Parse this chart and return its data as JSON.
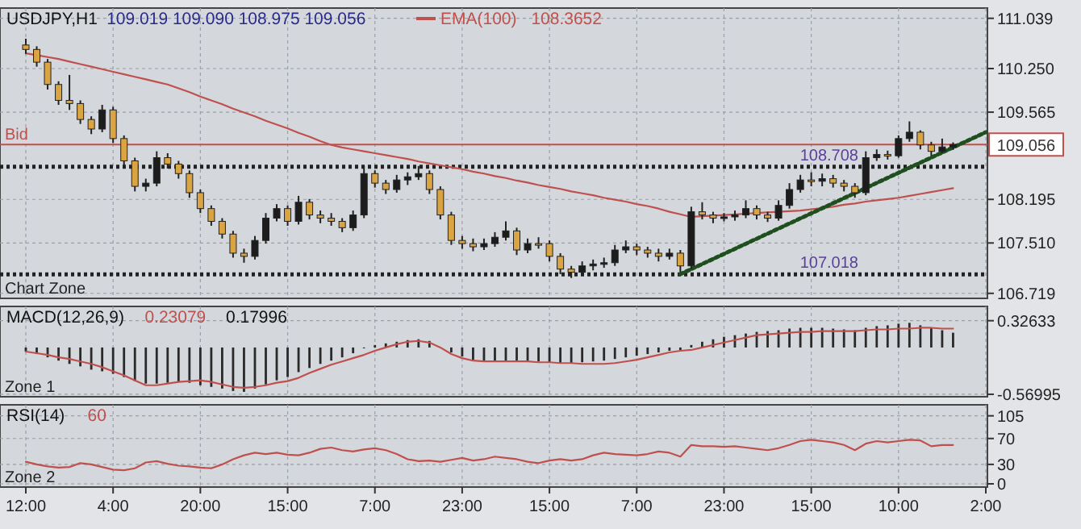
{
  "chart_data": [
    {
      "type": "candlestick",
      "title": "USDJPY,H1",
      "subtitle": "109.019 109.090 108.975 109.056",
      "categories": [
        null,
        null,
        null,
        null,
        null,
        null,
        null,
        null,
        null,
        null,
        null,
        null,
        null,
        null,
        null,
        null,
        null,
        null,
        null,
        null,
        null,
        null,
        null,
        null,
        null,
        null,
        null,
        null,
        null,
        null,
        null,
        null,
        null,
        null,
        null,
        null,
        null,
        null,
        null,
        null,
        null,
        null,
        null,
        null,
        null,
        null,
        null,
        null,
        null,
        null,
        null,
        null,
        null,
        null,
        null,
        null,
        null,
        null,
        null,
        null,
        null,
        null,
        null,
        null,
        null,
        null,
        null,
        null,
        null,
        null,
        null,
        null,
        null,
        null,
        null,
        null,
        null,
        null,
        null,
        null,
        null,
        null,
        null,
        null,
        null,
        null,
        null,
        null,
        null
      ],
      "ohlc": [
        [
          110.62,
          110.72,
          110.48,
          110.55
        ],
        [
          110.55,
          110.6,
          110.28,
          110.35
        ],
        [
          110.35,
          110.4,
          109.92,
          110.0
        ],
        [
          110.0,
          110.05,
          109.68,
          109.75
        ],
        [
          109.75,
          110.15,
          109.6,
          109.7
        ],
        [
          109.7,
          109.75,
          109.38,
          109.45
        ],
        [
          109.45,
          109.5,
          109.22,
          109.3
        ],
        [
          109.3,
          109.68,
          109.25,
          109.6
        ],
        [
          109.6,
          109.65,
          109.08,
          109.15
        ],
        [
          109.15,
          109.2,
          108.72,
          108.8
        ],
        [
          108.8,
          108.85,
          108.32,
          108.4
        ],
        [
          108.4,
          108.52,
          108.32,
          108.45
        ],
        [
          108.45,
          108.95,
          108.4,
          108.85
        ],
        [
          108.85,
          108.92,
          108.68,
          108.75
        ],
        [
          108.75,
          108.8,
          108.52,
          108.6
        ],
        [
          108.6,
          108.65,
          108.22,
          108.3
        ],
        [
          108.3,
          108.35,
          107.98,
          108.05
        ],
        [
          108.05,
          108.1,
          107.78,
          107.85
        ],
        [
          107.85,
          107.9,
          107.58,
          107.65
        ],
        [
          107.65,
          107.7,
          107.28,
          107.35
        ],
        [
          107.35,
          107.42,
          107.2,
          107.3
        ],
        [
          107.3,
          107.62,
          107.25,
          107.55
        ],
        [
          107.55,
          107.98,
          107.5,
          107.9
        ],
        [
          107.9,
          108.12,
          107.85,
          108.05
        ],
        [
          108.05,
          108.1,
          107.78,
          107.85
        ],
        [
          107.85,
          108.25,
          107.8,
          108.15
        ],
        [
          108.15,
          108.2,
          107.88,
          107.95
        ],
        [
          107.95,
          108.02,
          107.82,
          107.9
        ],
        [
          107.9,
          107.98,
          107.78,
          107.85
        ],
        [
          107.85,
          107.9,
          107.68,
          107.75
        ],
        [
          107.75,
          108.02,
          107.7,
          107.95
        ],
        [
          107.95,
          108.72,
          107.9,
          108.6
        ],
        [
          108.6,
          108.65,
          108.38,
          108.45
        ],
        [
          108.45,
          108.5,
          108.28,
          108.35
        ],
        [
          108.35,
          108.58,
          108.3,
          108.5
        ],
        [
          108.5,
          108.62,
          108.42,
          108.55
        ],
        [
          108.55,
          108.72,
          108.5,
          108.6
        ],
        [
          108.6,
          108.65,
          108.28,
          108.35
        ],
        [
          108.35,
          108.4,
          107.88,
          107.95
        ],
        [
          107.95,
          108.0,
          107.48,
          107.55
        ],
        [
          107.55,
          107.62,
          107.42,
          107.5
        ],
        [
          107.5,
          107.58,
          107.38,
          107.45
        ],
        [
          107.45,
          107.58,
          107.4,
          107.5
        ],
        [
          107.5,
          107.68,
          107.45,
          107.6
        ],
        [
          107.6,
          107.85,
          107.55,
          107.7
        ],
        [
          107.7,
          107.75,
          107.32,
          107.4
        ],
        [
          107.4,
          107.58,
          107.35,
          107.5
        ],
        [
          107.5,
          107.6,
          107.42,
          107.5
        ],
        [
          107.5,
          107.55,
          107.22,
          107.3
        ],
        [
          107.3,
          107.35,
          107.02,
          107.1
        ],
        [
          107.1,
          107.15,
          106.96,
          107.05
        ],
        [
          107.05,
          107.22,
          107.0,
          107.15
        ],
        [
          107.15,
          107.25,
          107.08,
          107.18
        ],
        [
          107.18,
          107.28,
          107.12,
          107.2
        ],
        [
          107.2,
          107.48,
          107.15,
          107.4
        ],
        [
          107.4,
          107.55,
          107.35,
          107.45
        ],
        [
          107.45,
          107.5,
          107.32,
          107.4
        ],
        [
          107.4,
          107.45,
          107.28,
          107.35
        ],
        [
          107.35,
          107.42,
          107.22,
          107.3
        ],
        [
          107.3,
          107.42,
          107.25,
          107.35
        ],
        [
          107.35,
          107.4,
          107.05,
          107.15
        ],
        [
          107.15,
          108.08,
          107.1,
          108.0
        ],
        [
          108.0,
          108.15,
          107.88,
          107.95
        ],
        [
          107.95,
          108.0,
          107.82,
          107.9
        ],
        [
          107.9,
          107.98,
          107.85,
          107.92
        ],
        [
          107.92,
          108.02,
          107.86,
          107.95
        ],
        [
          107.95,
          108.18,
          107.9,
          108.05
        ],
        [
          108.05,
          108.1,
          107.88,
          107.95
        ],
        [
          107.95,
          108.0,
          107.84,
          107.9
        ],
        [
          107.9,
          108.18,
          107.86,
          108.1
        ],
        [
          108.1,
          108.45,
          108.05,
          108.35
        ],
        [
          108.35,
          108.58,
          108.3,
          108.5
        ],
        [
          108.5,
          108.62,
          108.4,
          108.48
        ],
        [
          108.48,
          108.6,
          108.4,
          108.52
        ],
        [
          108.52,
          108.58,
          108.38,
          108.45
        ],
        [
          108.45,
          108.5,
          108.32,
          108.4
        ],
        [
          108.4,
          108.45,
          108.22,
          108.3
        ],
        [
          108.3,
          108.95,
          108.26,
          108.85
        ],
        [
          108.85,
          108.98,
          108.8,
          108.9
        ],
        [
          108.9,
          108.96,
          108.82,
          108.88
        ],
        [
          108.88,
          109.2,
          108.85,
          109.15
        ],
        [
          109.15,
          109.42,
          109.1,
          109.25
        ],
        [
          109.25,
          109.28,
          108.98,
          109.05
        ],
        [
          109.05,
          109.1,
          108.88,
          108.95
        ],
        [
          108.95,
          109.15,
          108.92,
          109.019
        ],
        [
          109.019,
          109.09,
          108.975,
          109.056
        ],
        null,
        null,
        null
      ],
      "colors": [
        "#d9a441",
        "#d9a441",
        "#d9a441",
        "#d9a441",
        "#d9a441",
        "#d9a441",
        "#d9a441",
        "#1c1c1c",
        "#d9a441",
        "#d9a441",
        "#d9a441",
        "#1c1c1c",
        "#1c1c1c",
        "#d9a441",
        "#d9a441",
        "#d9a441",
        "#d9a441",
        "#d9a441",
        "#d9a441",
        "#d9a441",
        "#d9a441",
        "#1c1c1c",
        "#1c1c1c",
        "#1c1c1c",
        "#d9a441",
        "#1c1c1c",
        "#d9a441",
        "#d9a441",
        "#d9a441",
        "#d9a441",
        "#1c1c1c",
        "#1c1c1c",
        "#d9a441",
        "#d9a441",
        "#1c1c1c",
        "#1c1c1c",
        "#1c1c1c",
        "#d9a441",
        "#d9a441",
        "#d9a441",
        "#d9a441",
        "#d9a441",
        "#1c1c1c",
        "#1c1c1c",
        "#1c1c1c",
        "#d9a441",
        "#1c1c1c",
        "#d9a441",
        "#d9a441",
        "#d9a441",
        "#d9a441",
        "#1c1c1c",
        "#1c1c1c",
        "#1c1c1c",
        "#1c1c1c",
        "#1c1c1c",
        "#d9a441",
        "#d9a441",
        "#d9a441",
        "#1c1c1c",
        "#d9a441",
        "#1c1c1c",
        "#d9a441",
        "#d9a441",
        "#1c1c1c",
        "#1c1c1c",
        "#1c1c1c",
        "#d9a441",
        "#d9a441",
        "#1c1c1c",
        "#1c1c1c",
        "#1c1c1c",
        "#d9a441",
        "#1c1c1c",
        "#d9a441",
        "#d9a441",
        "#d9a441",
        "#1c1c1c",
        "#1c1c1c",
        "#d9a441",
        "#1c1c1c",
        "#1c1c1c",
        "#d9a441",
        "#d9a441",
        "#1c1c1c",
        "#1c1c1c",
        null,
        null,
        null
      ],
      "series": [
        {
          "type": "line",
          "name": "EMA(100)",
          "color": "#c0504d",
          "values": [
            110.49,
            110.46,
            110.43,
            110.4,
            110.36,
            110.32,
            110.28,
            110.24,
            110.2,
            110.16,
            110.12,
            110.08,
            110.04,
            110.0,
            109.94,
            109.88,
            109.81,
            109.75,
            109.69,
            109.62,
            109.56,
            109.5,
            109.43,
            109.37,
            109.31,
            109.24,
            109.18,
            109.11,
            109.05,
            109.01,
            108.98,
            108.95,
            108.92,
            108.89,
            108.86,
            108.83,
            108.79,
            108.76,
            108.73,
            108.7,
            108.67,
            108.63,
            108.6,
            108.56,
            108.53,
            108.49,
            108.46,
            108.42,
            108.39,
            108.36,
            108.32,
            108.29,
            108.26,
            108.22,
            108.19,
            108.16,
            108.12,
            108.09,
            108.05,
            108.0,
            107.96,
            107.92,
            107.93,
            107.94,
            107.95,
            107.96,
            107.97,
            107.98,
            107.99,
            108.0,
            108.01,
            108.02,
            108.04,
            108.06,
            108.08,
            108.11,
            108.13,
            108.16,
            108.18,
            108.2,
            108.22,
            108.25,
            108.28,
            108.31,
            108.34,
            108.37,
            null,
            null,
            null
          ]
        },
        {
          "type": "line",
          "color": "#1f4f1f",
          "line_style": "dotted",
          "values": [
            null,
            null,
            null,
            null,
            null,
            null,
            null,
            null,
            null,
            null,
            null,
            null,
            null,
            null,
            null,
            null,
            null,
            null,
            null,
            null,
            null,
            null,
            null,
            null,
            null,
            null,
            null,
            null,
            null,
            null,
            null,
            null,
            null,
            null,
            null,
            null,
            null,
            null,
            null,
            null,
            null,
            null,
            null,
            null,
            null,
            null,
            null,
            null,
            null,
            null,
            null,
            null,
            null,
            null,
            null,
            null,
            null,
            null,
            null,
            null,
            107.02,
            null,
            null,
            null,
            null,
            null,
            null,
            null,
            null,
            null,
            null,
            null,
            null,
            null,
            null,
            null,
            null,
            null,
            null,
            null,
            null,
            null,
            null,
            null,
            null,
            null,
            null,
            null,
            109.25
          ]
        }
      ],
      "ref_lines": [
        {
          "axis": "y",
          "value": 109.056,
          "label": "Bid",
          "color": "#c0504d"
        },
        {
          "axis": "y",
          "value": 108.708,
          "label": "108.708",
          "color": "#222222",
          "line_style": "dotted"
        },
        {
          "axis": "y",
          "value": 107.018,
          "label": "107.018",
          "color": "#222222",
          "line_style": "dotted"
        }
      ],
      "annotations": [
        "108.3652",
        "109.056",
        "Chart Zone"
      ],
      "ylim": [
        106.64,
        111.2
      ],
      "yticks": [
        111.039,
        {
          "value": 110.25,
          "label": "110.250"
        },
        109.565,
        108.195,
        {
          "value": 107.51,
          "label": "107.510"
        },
        106.719
      ],
      "grid": true,
      "tick_labels": "y"
    },
    {
      "type": "bar",
      "title": "MACD(12,26,9)",
      "categories": [
        null,
        null,
        null,
        null,
        null,
        null,
        null,
        null,
        null,
        null,
        null,
        null,
        null,
        null,
        null,
        null,
        null,
        null,
        null,
        null,
        null,
        null,
        null,
        null,
        null,
        null,
        null,
        null,
        null,
        null,
        null,
        null,
        null,
        null,
        null,
        null,
        null,
        null,
        null,
        null,
        null,
        null,
        null,
        null,
        null,
        null,
        null,
        null,
        null,
        null,
        null,
        null,
        null,
        null,
        null,
        null,
        null,
        null,
        null,
        null,
        null,
        null,
        null,
        null,
        null,
        null,
        null,
        null,
        null,
        null,
        null,
        null,
        null,
        null,
        null,
        null,
        null,
        null,
        null,
        null,
        null,
        null,
        null,
        null,
        null,
        null,
        null,
        null,
        null
      ],
      "series": [
        {
          "type": "bar",
          "color": "#2a2a2a",
          "values": [
            -0.05,
            -0.08,
            -0.12,
            -0.16,
            -0.2,
            -0.23,
            -0.27,
            -0.29,
            -0.32,
            -0.36,
            -0.41,
            -0.44,
            -0.44,
            -0.43,
            -0.42,
            -0.43,
            -0.46,
            -0.48,
            -0.5,
            -0.53,
            -0.54,
            -0.5,
            -0.45,
            -0.4,
            -0.36,
            -0.3,
            -0.25,
            -0.2,
            -0.16,
            -0.12,
            -0.07,
            0.0,
            0.03,
            0.05,
            0.07,
            0.09,
            0.1,
            0.08,
            null,
            -0.06,
            -0.11,
            -0.15,
            -0.17,
            -0.17,
            -0.16,
            -0.17,
            -0.17,
            -0.17,
            -0.18,
            -0.19,
            -0.19,
            -0.18,
            -0.17,
            -0.16,
            -0.14,
            -0.12,
            -0.1,
            -0.08,
            -0.06,
            -0.04,
            -0.03,
            0.03,
            0.07,
            0.1,
            0.13,
            0.15,
            0.17,
            0.19,
            0.2,
            0.21,
            0.23,
            0.24,
            0.24,
            0.24,
            0.23,
            0.22,
            0.21,
            0.24,
            0.26,
            0.27,
            0.29,
            0.3,
            0.27,
            0.24,
            0.21,
            0.18,
            null,
            null,
            null
          ]
        },
        {
          "type": "line",
          "color": "#c0504d",
          "values": [
            -0.05,
            -0.07,
            -0.09,
            -0.12,
            -0.14,
            -0.17,
            -0.2,
            -0.24,
            -0.29,
            -0.34,
            -0.4,
            -0.46,
            -0.46,
            -0.44,
            -0.42,
            -0.41,
            -0.4,
            -0.42,
            -0.45,
            -0.48,
            -0.49,
            -0.48,
            -0.46,
            -0.43,
            -0.41,
            -0.37,
            -0.31,
            -0.26,
            -0.21,
            -0.17,
            -0.13,
            -0.09,
            -0.04,
            0.0,
            0.04,
            0.07,
            0.08,
            0.06,
            0.0,
            -0.08,
            -0.13,
            -0.16,
            -0.17,
            -0.17,
            -0.17,
            -0.17,
            -0.17,
            -0.18,
            -0.18,
            -0.19,
            -0.19,
            -0.2,
            -0.2,
            -0.2,
            -0.19,
            -0.17,
            -0.15,
            -0.12,
            -0.09,
            -0.06,
            -0.04,
            -0.03,
            0.0,
            0.03,
            0.06,
            0.09,
            0.12,
            0.15,
            0.16,
            0.17,
            0.18,
            0.19,
            0.19,
            0.2,
            0.2,
            0.2,
            0.2,
            0.21,
            0.22,
            0.22,
            0.23,
            0.23,
            0.24,
            0.24,
            0.23,
            0.23,
            null,
            null,
            null
          ]
        }
      ],
      "annotations": [
        "0.23079",
        "0.17996",
        "Zone 1"
      ],
      "ylim": [
        -0.6,
        0.5
      ],
      "yticks": [
        0.32633,
        -0.56995
      ],
      "grid": true,
      "tick_labels": "y"
    },
    {
      "type": "line",
      "title": "RSI(14)",
      "categories": [
        "12:00",
        null,
        null,
        null,
        null,
        null,
        null,
        null,
        "4:00",
        null,
        null,
        null,
        null,
        null,
        null,
        null,
        "20:00",
        null,
        null,
        null,
        null,
        null,
        null,
        null,
        "15:00",
        null,
        null,
        null,
        null,
        null,
        null,
        null,
        "7:00",
        null,
        null,
        null,
        null,
        null,
        null,
        null,
        "23:00",
        null,
        null,
        null,
        null,
        null,
        null,
        null,
        "15:00",
        null,
        null,
        null,
        null,
        null,
        null,
        null,
        "7:00",
        null,
        null,
        null,
        null,
        null,
        null,
        null,
        "23:00",
        null,
        null,
        null,
        null,
        null,
        null,
        null,
        "15:00",
        null,
        null,
        null,
        null,
        null,
        null,
        null,
        "10:00",
        null,
        null,
        null,
        null,
        null,
        null,
        null,
        "2:00"
      ],
      "series": [
        {
          "color": "#c0504d",
          "values": [
            34,
            30,
            27,
            25,
            26,
            32,
            30,
            26,
            22,
            21,
            24,
            33,
            35,
            31,
            28,
            27,
            25,
            24,
            30,
            38,
            44,
            48,
            46,
            48,
            45,
            44,
            48,
            54,
            56,
            52,
            50,
            53,
            55,
            52,
            46,
            38,
            35,
            36,
            34,
            37,
            40,
            36,
            38,
            42,
            40,
            38,
            34,
            32,
            36,
            38,
            36,
            38,
            44,
            48,
            46,
            45,
            44,
            46,
            50,
            48,
            42,
            60,
            58,
            58,
            57,
            58,
            56,
            54,
            52,
            55,
            60,
            66,
            68,
            66,
            64,
            60,
            52,
            62,
            66,
            64,
            66,
            68,
            67,
            58,
            60,
            60,
            null,
            null,
            null
          ]
        }
      ],
      "annotations": [
        "60",
        "Zone 2"
      ],
      "ylim": [
        -5,
        122
      ],
      "yticks": [
        105,
        70,
        30,
        0
      ],
      "grid": true
    }
  ]
}
